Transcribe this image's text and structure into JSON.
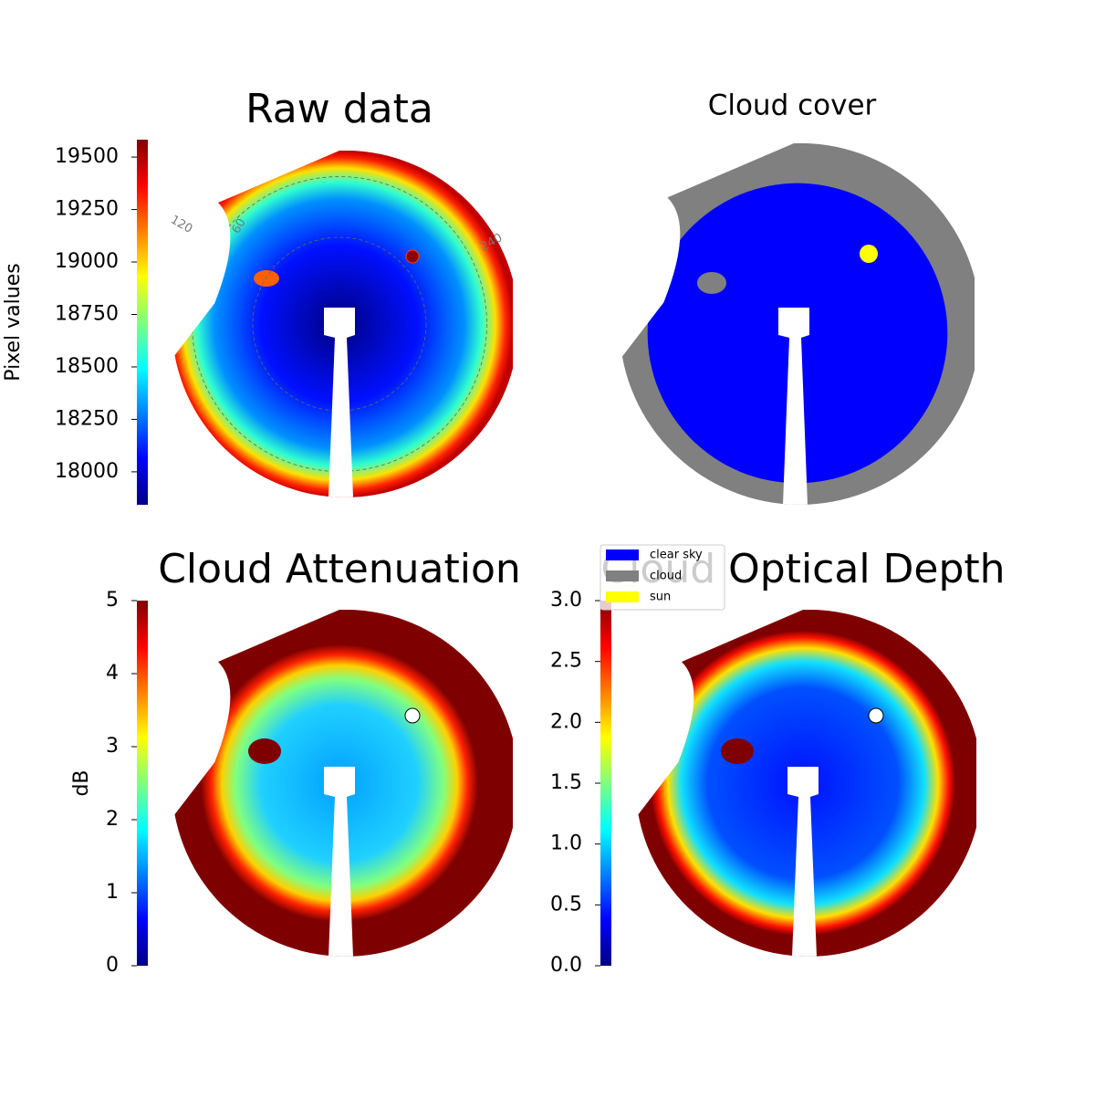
{
  "chart_data": [
    {
      "type": "image",
      "title": "Raw data",
      "colormap": "jet",
      "colorbar": {
        "label": "Pixel values",
        "clim": [
          17843,
          19583
        ],
        "ticks": [
          18000,
          18250,
          18500,
          18750,
          19000,
          19250,
          19500
        ]
      },
      "annotations": [
        "120",
        "60",
        "240"
      ]
    },
    {
      "type": "image",
      "title": "Cloud cover",
      "legend": {
        "loc": "lower left",
        "series": [
          {
            "name": "clear sky",
            "color": "#0000ff"
          },
          {
            "name": "cloud",
            "color": "#808080"
          },
          {
            "name": "sun",
            "color": "#ffff00"
          }
        ]
      }
    },
    {
      "type": "image",
      "title": "Cloud Attenuation",
      "colormap": "jet",
      "colorbar": {
        "label": "dB",
        "clim": [
          0,
          5
        ],
        "ticks": [
          0,
          1,
          2,
          3,
          4,
          5
        ]
      }
    },
    {
      "type": "image",
      "title": "Cloud Optical Depth",
      "colormap": "jet",
      "colorbar": {
        "clim": [
          0,
          3
        ],
        "ticks": [
          {
            "value": 0,
            "label": "0.0"
          },
          {
            "value": 0.5,
            "label": "0.5"
          },
          {
            "value": 1,
            "label": "1.0"
          },
          {
            "value": 1.5,
            "label": "1.5"
          },
          {
            "value": 2,
            "label": "2.0"
          },
          {
            "value": 2.5,
            "label": "2.5"
          },
          {
            "value": 3,
            "label": "3.0"
          }
        ]
      }
    }
  ]
}
